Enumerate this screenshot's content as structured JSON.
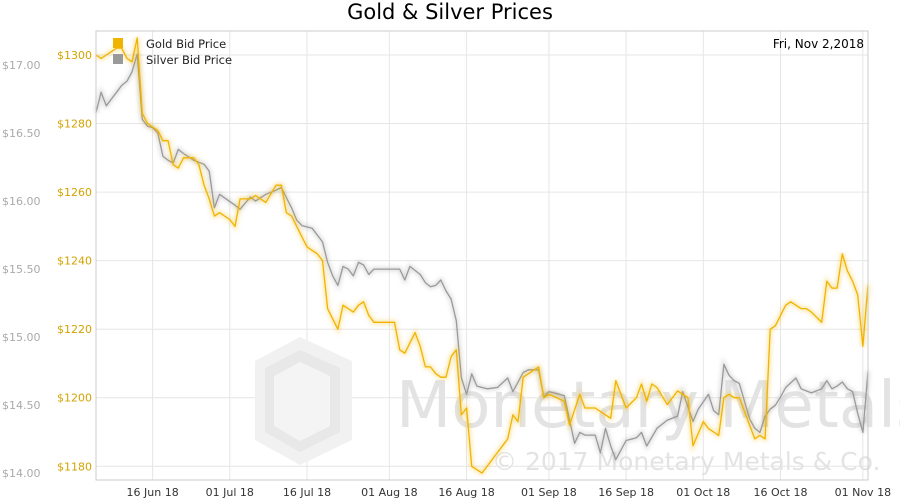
{
  "chart_data": {
    "type": "line",
    "title": "Gold & Silver Prices",
    "date_label": "Fri, Nov 2,2018",
    "colors": {
      "gold": "#f0b400",
      "silver": "#9a9a9a",
      "gold_tick": "#d4a300",
      "silver_tick": "#aaaaaa",
      "grid": "#e6e6e6"
    },
    "x_tick_labels": [
      "16 Jun 18",
      "01 Jul 18",
      "16 Jul 18",
      "01 Aug 18",
      "16 Aug 18",
      "01 Sep 18",
      "16 Sep 18",
      "01 Oct 18",
      "16 Oct 18",
      "01 Nov 18"
    ],
    "x_range": [
      "2018-06-05",
      "2018-11-02"
    ],
    "gold_axis": {
      "ticks": [
        "$1180",
        "$1200",
        "$1220",
        "$1240",
        "$1260",
        "$1280",
        "$1300"
      ],
      "ylim": [
        1176,
        1307
      ]
    },
    "silver_axis": {
      "ticks": [
        "$14.00",
        "$14.50",
        "$15.00",
        "$15.50",
        "$16.00",
        "$16.50",
        "$17.00"
      ],
      "ylim": [
        13.95,
        17.25
      ]
    },
    "legend_position": "top-left",
    "grid": true,
    "series": [
      {
        "name": "Gold Bid Price",
        "key": "gold",
        "points": [
          [
            "2018-06-05",
            1300
          ],
          [
            "2018-06-06",
            1299
          ],
          [
            "2018-06-07",
            1300
          ],
          [
            "2018-06-08",
            1301
          ],
          [
            "2018-06-09",
            1302
          ],
          [
            "2018-06-10",
            1302
          ],
          [
            "2018-06-11",
            1299
          ],
          [
            "2018-06-12",
            1298
          ],
          [
            "2018-06-13",
            1305
          ],
          [
            "2018-06-14",
            1283
          ],
          [
            "2018-06-15",
            1280
          ],
          [
            "2018-06-16",
            1279
          ],
          [
            "2018-06-17",
            1278
          ],
          [
            "2018-06-18",
            1275
          ],
          [
            "2018-06-19",
            1275
          ],
          [
            "2018-06-20",
            1268
          ],
          [
            "2018-06-21",
            1267
          ],
          [
            "2018-06-22",
            1270
          ],
          [
            "2018-06-24",
            1270
          ],
          [
            "2018-06-25",
            1268
          ],
          [
            "2018-06-26",
            1262
          ],
          [
            "2018-06-27",
            1258
          ],
          [
            "2018-06-28",
            1253
          ],
          [
            "2018-06-29",
            1254
          ],
          [
            "2018-07-01",
            1252
          ],
          [
            "2018-07-02",
            1250
          ],
          [
            "2018-07-03",
            1258
          ],
          [
            "2018-07-05",
            1258
          ],
          [
            "2018-07-06",
            1259
          ],
          [
            "2018-07-08",
            1257
          ],
          [
            "2018-07-10",
            1262
          ],
          [
            "2018-07-11",
            1262
          ],
          [
            "2018-07-12",
            1254
          ],
          [
            "2018-07-13",
            1253
          ],
          [
            "2018-07-14",
            1250
          ],
          [
            "2018-07-16",
            1244
          ],
          [
            "2018-07-18",
            1242
          ],
          [
            "2018-07-19",
            1240
          ],
          [
            "2018-07-20",
            1226
          ],
          [
            "2018-07-21",
            1223
          ],
          [
            "2018-07-22",
            1220
          ],
          [
            "2018-07-23",
            1227
          ],
          [
            "2018-07-24",
            1226
          ],
          [
            "2018-07-25",
            1225
          ],
          [
            "2018-07-26",
            1227
          ],
          [
            "2018-07-27",
            1228
          ],
          [
            "2018-07-28",
            1224
          ],
          [
            "2018-07-29",
            1222
          ],
          [
            "2018-08-02",
            1222
          ],
          [
            "2018-08-03",
            1214
          ],
          [
            "2018-08-04",
            1213
          ],
          [
            "2018-08-06",
            1219
          ],
          [
            "2018-08-07",
            1215
          ],
          [
            "2018-08-08",
            1209
          ],
          [
            "2018-08-09",
            1209
          ],
          [
            "2018-08-10",
            1207
          ],
          [
            "2018-08-11",
            1206
          ],
          [
            "2018-08-12",
            1206
          ],
          [
            "2018-08-13",
            1212
          ],
          [
            "2018-08-14",
            1214
          ],
          [
            "2018-08-15",
            1195
          ],
          [
            "2018-08-16",
            1197
          ],
          [
            "2018-08-17",
            1180
          ],
          [
            "2018-08-18",
            1179
          ],
          [
            "2018-08-19",
            1178
          ],
          [
            "2018-08-21",
            1182
          ],
          [
            "2018-08-23",
            1186
          ],
          [
            "2018-08-24",
            1188
          ],
          [
            "2018-08-25",
            1195
          ],
          [
            "2018-08-26",
            1193
          ],
          [
            "2018-08-27",
            1206
          ],
          [
            "2018-08-29",
            1208
          ],
          [
            "2018-08-30",
            1209
          ],
          [
            "2018-08-31",
            1200
          ],
          [
            "2018-09-01",
            1201
          ],
          [
            "2018-09-04",
            1199
          ],
          [
            "2018-09-05",
            1192
          ],
          [
            "2018-09-07",
            1201
          ],
          [
            "2018-09-08",
            1197
          ],
          [
            "2018-09-10",
            1197
          ],
          [
            "2018-09-12",
            1195
          ],
          [
            "2018-09-13",
            1194
          ],
          [
            "2018-09-14",
            1205
          ],
          [
            "2018-09-16",
            1197
          ],
          [
            "2018-09-18",
            1200
          ],
          [
            "2018-09-19",
            1204
          ],
          [
            "2018-09-20",
            1199
          ],
          [
            "2018-09-21",
            1204
          ],
          [
            "2018-09-22",
            1203
          ],
          [
            "2018-09-24",
            1198
          ],
          [
            "2018-09-26",
            1202
          ],
          [
            "2018-09-28",
            1200
          ],
          [
            "2018-09-29",
            1186
          ],
          [
            "2018-10-01",
            1193
          ],
          [
            "2018-10-02",
            1191
          ],
          [
            "2018-10-03",
            1190
          ],
          [
            "2018-10-04",
            1189
          ],
          [
            "2018-10-05",
            1200
          ],
          [
            "2018-10-06",
            1201
          ],
          [
            "2018-10-07",
            1200
          ],
          [
            "2018-10-08",
            1200
          ],
          [
            "2018-10-10",
            1192
          ],
          [
            "2018-10-11",
            1188
          ],
          [
            "2018-10-12",
            1189
          ],
          [
            "2018-10-13",
            1188
          ],
          [
            "2018-10-14",
            1220
          ],
          [
            "2018-10-15",
            1221
          ],
          [
            "2018-10-16",
            1224
          ],
          [
            "2018-10-17",
            1227
          ],
          [
            "2018-10-18",
            1228
          ],
          [
            "2018-10-19",
            1227
          ],
          [
            "2018-10-20",
            1226
          ],
          [
            "2018-10-21",
            1226
          ],
          [
            "2018-10-22",
            1225
          ],
          [
            "2018-10-24",
            1222
          ],
          [
            "2018-10-25",
            1234
          ],
          [
            "2018-10-26",
            1232
          ],
          [
            "2018-10-27",
            1232
          ],
          [
            "2018-10-28",
            1242
          ],
          [
            "2018-10-29",
            1237
          ],
          [
            "2018-10-30",
            1234
          ],
          [
            "2018-10-31",
            1230
          ],
          [
            "2018-11-01",
            1215
          ],
          [
            "2018-11-02",
            1233
          ]
        ]
      },
      {
        "name": "Silver Bid Price",
        "key": "silver",
        "points": [
          [
            "2018-06-05",
            16.65
          ],
          [
            "2018-06-06",
            16.8
          ],
          [
            "2018-06-07",
            16.7
          ],
          [
            "2018-06-08",
            16.75
          ],
          [
            "2018-06-09",
            16.8
          ],
          [
            "2018-06-10",
            16.85
          ],
          [
            "2018-06-11",
            16.88
          ],
          [
            "2018-06-12",
            16.95
          ],
          [
            "2018-06-13",
            17.08
          ],
          [
            "2018-06-14",
            16.6
          ],
          [
            "2018-06-15",
            16.55
          ],
          [
            "2018-06-16",
            16.54
          ],
          [
            "2018-06-17",
            16.5
          ],
          [
            "2018-06-18",
            16.33
          ],
          [
            "2018-06-19",
            16.3
          ],
          [
            "2018-06-20",
            16.28
          ],
          [
            "2018-06-21",
            16.38
          ],
          [
            "2018-06-22",
            16.35
          ],
          [
            "2018-06-24",
            16.3
          ],
          [
            "2018-06-26",
            16.27
          ],
          [
            "2018-06-27",
            16.22
          ],
          [
            "2018-06-28",
            15.95
          ],
          [
            "2018-06-29",
            16.05
          ],
          [
            "2018-07-02",
            15.97
          ],
          [
            "2018-07-03",
            15.94
          ],
          [
            "2018-07-05",
            16.03
          ],
          [
            "2018-07-06",
            16.0
          ],
          [
            "2018-07-08",
            16.05
          ],
          [
            "2018-07-10",
            16.08
          ],
          [
            "2018-07-11",
            16.1
          ],
          [
            "2018-07-13",
            15.95
          ],
          [
            "2018-07-14",
            15.86
          ],
          [
            "2018-07-15",
            15.82
          ],
          [
            "2018-07-17",
            15.8
          ],
          [
            "2018-07-19",
            15.7
          ],
          [
            "2018-07-20",
            15.55
          ],
          [
            "2018-07-21",
            15.45
          ],
          [
            "2018-07-22",
            15.38
          ],
          [
            "2018-07-23",
            15.52
          ],
          [
            "2018-07-24",
            15.5
          ],
          [
            "2018-07-25",
            15.45
          ],
          [
            "2018-07-26",
            15.55
          ],
          [
            "2018-07-27",
            15.53
          ],
          [
            "2018-07-28",
            15.46
          ],
          [
            "2018-07-29",
            15.5
          ],
          [
            "2018-08-03",
            15.5
          ],
          [
            "2018-08-04",
            15.42
          ],
          [
            "2018-08-05",
            15.52
          ],
          [
            "2018-08-07",
            15.46
          ],
          [
            "2018-08-08",
            15.4
          ],
          [
            "2018-08-09",
            15.37
          ],
          [
            "2018-08-10",
            15.38
          ],
          [
            "2018-08-11",
            15.42
          ],
          [
            "2018-08-12",
            15.34
          ],
          [
            "2018-08-13",
            15.28
          ],
          [
            "2018-08-14",
            15.12
          ],
          [
            "2018-08-15",
            14.7
          ],
          [
            "2018-08-16",
            14.58
          ],
          [
            "2018-08-17",
            14.73
          ],
          [
            "2018-08-18",
            14.64
          ],
          [
            "2018-08-20",
            14.62
          ],
          [
            "2018-08-22",
            14.63
          ],
          [
            "2018-08-24",
            14.7
          ],
          [
            "2018-08-25",
            14.6
          ],
          [
            "2018-08-27",
            14.74
          ],
          [
            "2018-08-28",
            14.76
          ],
          [
            "2018-08-30",
            14.76
          ],
          [
            "2018-08-31",
            14.56
          ],
          [
            "2018-09-01",
            14.6
          ],
          [
            "2018-09-04",
            14.57
          ],
          [
            "2018-09-06",
            14.22
          ],
          [
            "2018-09-07",
            14.3
          ],
          [
            "2018-09-08",
            14.28
          ],
          [
            "2018-09-10",
            14.28
          ],
          [
            "2018-09-11",
            14.15
          ],
          [
            "2018-09-12",
            14.33
          ],
          [
            "2018-09-13",
            14.2
          ],
          [
            "2018-09-14",
            14.1
          ],
          [
            "2018-09-16",
            14.24
          ],
          [
            "2018-09-18",
            14.26
          ],
          [
            "2018-09-19",
            14.3
          ],
          [
            "2018-09-20",
            14.2
          ],
          [
            "2018-09-22",
            14.33
          ],
          [
            "2018-09-24",
            14.39
          ],
          [
            "2018-09-26",
            14.42
          ],
          [
            "2018-09-27",
            14.6
          ],
          [
            "2018-09-29",
            14.38
          ],
          [
            "2018-09-30",
            14.47
          ],
          [
            "2018-10-02",
            14.58
          ],
          [
            "2018-10-03",
            14.46
          ],
          [
            "2018-10-04",
            14.43
          ],
          [
            "2018-10-05",
            14.8
          ],
          [
            "2018-10-06",
            14.72
          ],
          [
            "2018-10-07",
            14.68
          ],
          [
            "2018-10-08",
            14.66
          ],
          [
            "2018-10-10",
            14.4
          ],
          [
            "2018-10-11",
            14.33
          ],
          [
            "2018-10-12",
            14.3
          ],
          [
            "2018-10-13",
            14.42
          ],
          [
            "2018-10-14",
            14.47
          ],
          [
            "2018-10-15",
            14.5
          ],
          [
            "2018-10-16",
            14.56
          ],
          [
            "2018-10-17",
            14.63
          ],
          [
            "2018-10-19",
            14.7
          ],
          [
            "2018-10-20",
            14.62
          ],
          [
            "2018-10-22",
            14.59
          ],
          [
            "2018-10-24",
            14.62
          ],
          [
            "2018-10-25",
            14.68
          ],
          [
            "2018-10-26",
            14.62
          ],
          [
            "2018-10-27",
            14.64
          ],
          [
            "2018-10-28",
            14.67
          ],
          [
            "2018-10-29",
            14.62
          ],
          [
            "2018-10-30",
            14.6
          ],
          [
            "2018-10-31",
            14.44
          ],
          [
            "2018-11-01",
            14.3
          ],
          [
            "2018-11-02",
            14.75
          ]
        ]
      }
    ]
  },
  "watermark": {
    "name": "Monetary Metals",
    "copyright": "© 2017 Monetary Metals & Co."
  }
}
